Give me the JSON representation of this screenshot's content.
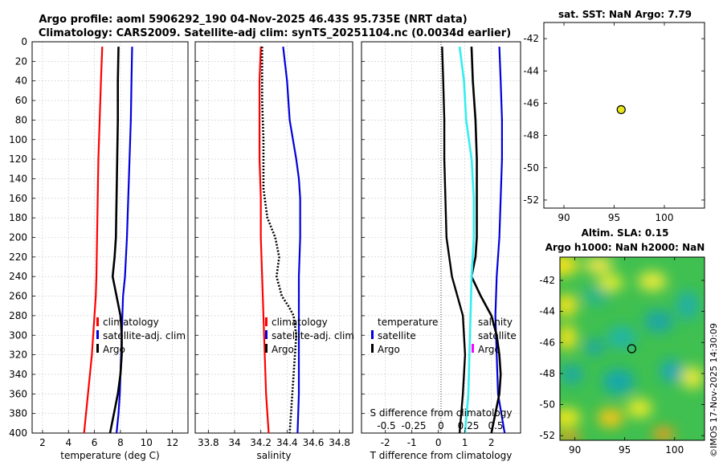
{
  "title_line1": "Argo profile: aoml 5906292_190 04-Nov-2025 46.43S 95.735E (NRT data)",
  "title_line2": "Climatology: CARS2009. Satellite-adj clim: synTS_20251104.nc (0.0034d earlier)",
  "sst_title": "sat. SST: NaN Argo: 7.79",
  "sla_title1": "Altim. SLA: 0.15",
  "sla_title2": "Argo h1000: NaN h2000: NaN",
  "watermark": "©IMOS 17-Nov-2025 14:30:09",
  "colors": {
    "climatology": "#ff0000",
    "satellite": "#0000dd",
    "argo": "#000000",
    "temp_diff": "#33eeee",
    "sal_diff": "#000000",
    "sal_marker": "#ff00ff",
    "float": "#e6e61a"
  },
  "chart_data": [
    {
      "type": "line",
      "name": "temperature",
      "xlabel": "temperature (deg C)",
      "ylabel": "depth",
      "xlim": [
        1.2,
        13.2
      ],
      "ylim": [
        0,
        400
      ],
      "xticks": [
        2,
        4,
        6,
        8,
        10,
        12
      ],
      "yticks": [
        0,
        20,
        40,
        60,
        80,
        100,
        120,
        140,
        160,
        180,
        200,
        220,
        240,
        260,
        280,
        300,
        320,
        340,
        360,
        380,
        400
      ],
      "legend": [
        "climatology",
        "satellite-adj. clim",
        "Argo"
      ],
      "series": [
        {
          "name": "climatology",
          "depth": [
            5,
            40,
            80,
            120,
            160,
            200,
            240,
            260,
            280,
            300,
            320,
            340,
            360,
            380,
            400
          ],
          "values": [
            6.6,
            6.5,
            6.4,
            6.3,
            6.25,
            6.2,
            6.15,
            6.1,
            6.0,
            5.9,
            5.8,
            5.65,
            5.5,
            5.35,
            5.2
          ]
        },
        {
          "name": "satellite-adj. clim",
          "depth": [
            5,
            40,
            80,
            120,
            160,
            200,
            240,
            260,
            280,
            300,
            320,
            340,
            360,
            380,
            400
          ],
          "values": [
            8.9,
            8.85,
            8.8,
            8.7,
            8.6,
            8.5,
            8.35,
            8.2,
            8.15,
            8.1,
            8.05,
            8.0,
            7.95,
            7.85,
            7.7
          ]
        },
        {
          "name": "Argo",
          "depth": [
            5,
            40,
            80,
            120,
            160,
            200,
            220,
            240,
            260,
            280,
            300,
            320,
            340,
            360,
            380,
            400
          ],
          "values": [
            7.85,
            7.8,
            7.8,
            7.75,
            7.7,
            7.65,
            7.55,
            7.4,
            7.7,
            8.0,
            8.1,
            8.1,
            8.0,
            7.8,
            7.5,
            7.2
          ]
        }
      ]
    },
    {
      "type": "line",
      "name": "salinity",
      "xlabel": "salinity",
      "ylabel": "depth",
      "xlim": [
        33.7,
        34.9
      ],
      "ylim": [
        0,
        400
      ],
      "xticks": [
        33.8,
        34,
        34.2,
        34.4,
        34.6,
        34.8
      ],
      "xticklabels": [
        "33.8",
        "34",
        "34.2",
        "34.4",
        "34.6",
        "34.8"
      ],
      "legend": [
        "climatology",
        "satellite-adj. clim",
        "Argo"
      ],
      "series": [
        {
          "name": "climatology",
          "depth": [
            5,
            40,
            80,
            120,
            160,
            200,
            240,
            280,
            320,
            360,
            400
          ],
          "values": [
            34.2,
            34.19,
            34.19,
            34.19,
            34.2,
            34.2,
            34.21,
            34.22,
            34.23,
            34.24,
            34.26
          ]
        },
        {
          "name": "satellite-adj. clim",
          "depth": [
            5,
            40,
            80,
            120,
            140,
            160,
            200,
            240,
            280,
            320,
            360,
            400
          ],
          "values": [
            34.37,
            34.4,
            34.42,
            34.47,
            34.49,
            34.5,
            34.5,
            34.49,
            34.49,
            34.49,
            34.49,
            34.48
          ]
        },
        {
          "name": "Argo",
          "depth": [
            5,
            60,
            100,
            150,
            180,
            200,
            220,
            240,
            260,
            270,
            280,
            300,
            320,
            340,
            360,
            380,
            400
          ],
          "values": [
            34.21,
            34.21,
            34.22,
            34.22,
            34.25,
            34.31,
            34.34,
            34.32,
            34.36,
            34.41,
            34.45,
            34.47,
            34.46,
            34.45,
            34.44,
            34.43,
            34.42
          ]
        }
      ]
    },
    {
      "type": "line",
      "name": "difference",
      "xlabel": "T difference from climatology",
      "top_xlabel": "S difference from climatology",
      "xlim": [
        -2.9,
        3.1
      ],
      "ylim": [
        0,
        400
      ],
      "xticks": [
        -2,
        -1,
        0,
        1,
        2
      ],
      "top_xticks": [
        -0.5,
        -0.25,
        0,
        0.25,
        0.5
      ],
      "top_xticklabels": [
        "-0.5",
        "-0.25",
        "0",
        "0.25",
        "0.5"
      ],
      "legend_temperature": [
        "temperature",
        "satellite",
        "Argo"
      ],
      "legend_salinity": [
        "salinity",
        "satellite",
        "Argo"
      ],
      "series": [
        {
          "name": "temperature satellite",
          "depth": [
            5,
            40,
            80,
            120,
            160,
            200,
            240,
            280,
            320,
            360,
            400
          ],
          "values": [
            2.3,
            2.35,
            2.4,
            2.4,
            2.35,
            2.3,
            2.2,
            2.15,
            2.2,
            2.25,
            2.5
          ]
        },
        {
          "name": "temperature Argo",
          "depth": [
            5,
            40,
            80,
            120,
            160,
            200,
            220,
            240,
            260,
            280,
            300,
            320,
            340,
            360,
            380,
            400
          ],
          "values": [
            1.25,
            1.3,
            1.4,
            1.45,
            1.45,
            1.45,
            1.4,
            1.25,
            1.6,
            2.0,
            2.2,
            2.3,
            2.35,
            2.3,
            2.15,
            2.0
          ]
        },
        {
          "name": "salinity satellite",
          "depth": [
            5,
            40,
            80,
            120,
            160,
            200,
            240,
            280,
            320,
            360,
            400
          ],
          "values": [
            0.17,
            0.21,
            0.23,
            0.28,
            0.3,
            0.3,
            0.28,
            0.27,
            0.26,
            0.25,
            0.22
          ]
        },
        {
          "name": "salinity Argo",
          "depth": [
            5,
            40,
            80,
            120,
            160,
            200,
            240,
            280,
            320,
            360,
            400
          ],
          "values": [
            0.01,
            0.02,
            0.03,
            0.03,
            0.04,
            0.05,
            0.1,
            0.2,
            0.22,
            0.2,
            0.17
          ]
        }
      ]
    },
    {
      "type": "scatter",
      "name": "sst-map",
      "xlim": [
        88,
        104
      ],
      "ylim": [
        -52.5,
        -41
      ],
      "xticks": [
        90,
        95,
        100
      ],
      "yticks": [
        -52,
        -50,
        -48,
        -46,
        -44,
        -42
      ],
      "points": [
        {
          "x": 95.7,
          "y": -46.4
        }
      ]
    },
    {
      "type": "heatmap",
      "name": "sla-map",
      "xlim": [
        88.5,
        103
      ],
      "ylim": [
        -52.3,
        -40.5
      ],
      "xticks": [
        90,
        95,
        100
      ],
      "yticks": [
        -52,
        -50,
        -48,
        -46,
        -44,
        -42
      ],
      "points": [
        {
          "x": 95.7,
          "y": -46.4
        }
      ]
    }
  ]
}
